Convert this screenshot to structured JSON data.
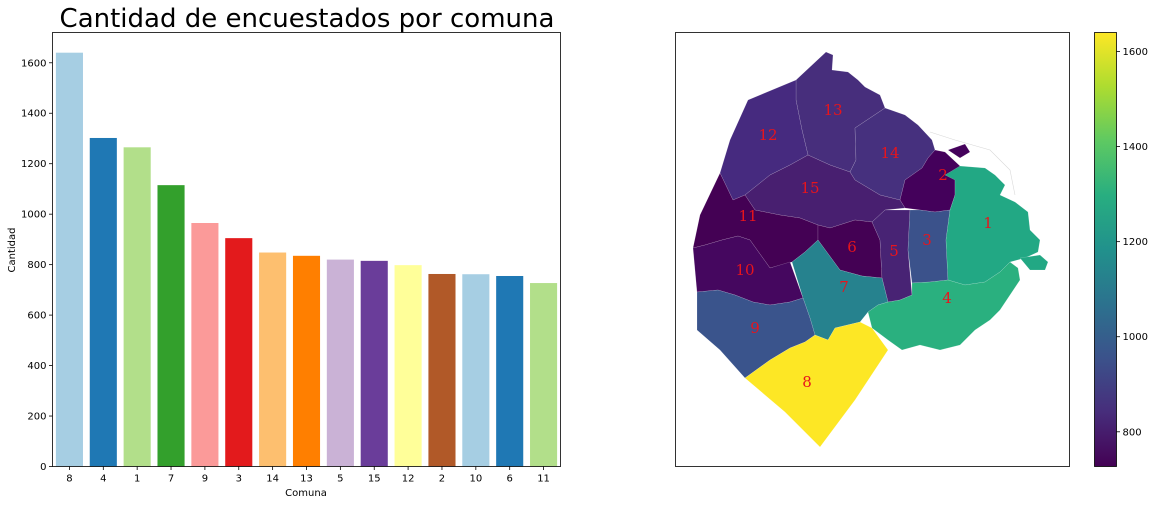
{
  "chart_data": [
    {
      "type": "bar",
      "title": "Cantidad de encuestados por comuna",
      "xlabel": "Comuna",
      "ylabel": "Cantidad",
      "categories": [
        "8",
        "4",
        "1",
        "7",
        "9",
        "3",
        "14",
        "13",
        "5",
        "15",
        "12",
        "2",
        "10",
        "6",
        "11"
      ],
      "values": [
        1640,
        1302,
        1265,
        1115,
        965,
        905,
        848,
        835,
        820,
        815,
        798,
        763,
        762,
        755,
        727
      ],
      "colors": [
        "#a6cee3",
        "#1f78b4",
        "#b2df8a",
        "#33a02c",
        "#fb9a99",
        "#e31a1c",
        "#fdbf6f",
        "#ff7f00",
        "#cab2d6",
        "#6a3d9a",
        "#ffff99",
        "#b15928",
        "#a6cee3",
        "#1f78b4",
        "#b2df8a"
      ],
      "ylim": [
        0,
        1720
      ],
      "yticks": [
        0,
        200,
        400,
        600,
        800,
        1000,
        1200,
        1400,
        1600
      ],
      "grid": false
    },
    {
      "type": "heatmap",
      "kind": "choropleth",
      "regions": [
        {
          "label": "1",
          "value": 1265,
          "color": "#22a884"
        },
        {
          "label": "2",
          "value": 763,
          "color": "#44015b"
        },
        {
          "label": "3",
          "value": 905,
          "color": "#3b528b"
        },
        {
          "label": "4",
          "value": 1302,
          "color": "#2ab07f"
        },
        {
          "label": "5",
          "value": 820,
          "color": "#482374"
        },
        {
          "label": "6",
          "value": 755,
          "color": "#440154"
        },
        {
          "label": "7",
          "value": 1115,
          "color": "#26828e"
        },
        {
          "label": "8",
          "value": 1640,
          "color": "#fde725"
        },
        {
          "label": "9",
          "value": 965,
          "color": "#3a548c"
        },
        {
          "label": "10",
          "value": 762,
          "color": "#45075f"
        },
        {
          "label": "11",
          "value": 727,
          "color": "#440154"
        },
        {
          "label": "12",
          "value": 798,
          "color": "#462a7f"
        },
        {
          "label": "13",
          "value": 835,
          "color": "#472e7c"
        },
        {
          "label": "14",
          "value": 848,
          "color": "#46307e"
        },
        {
          "label": "15",
          "value": 815,
          "color": "#481f70"
        }
      ],
      "colorbar": {
        "colormap": "viridis",
        "range": [
          727,
          1640
        ],
        "ticks": [
          800,
          1000,
          1200,
          1400,
          1600
        ]
      }
    }
  ]
}
